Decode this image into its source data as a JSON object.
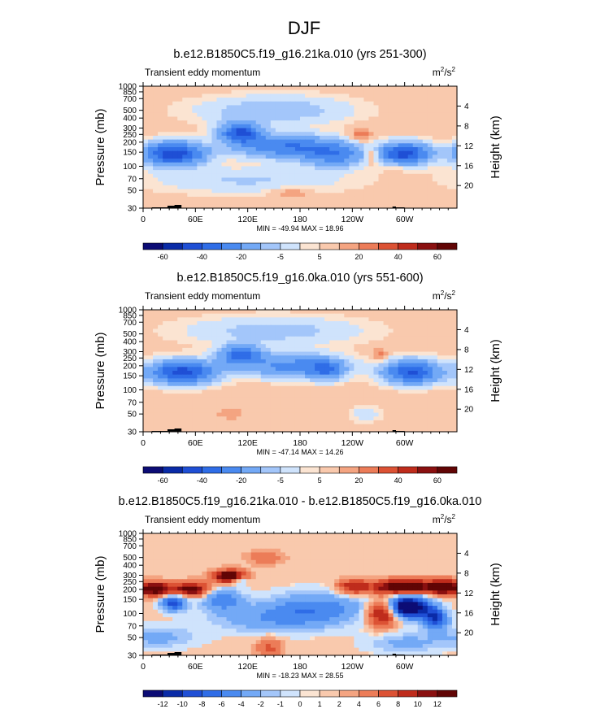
{
  "figure_title": "DJF",
  "chart_data": [
    {
      "type": "heatmap",
      "title": "b.e12.B1850C5.f19_g16.21ka.010 (yrs 251-300)",
      "left_string": "Transient eddy momentum",
      "units": "m2/s2",
      "units_base": "m",
      "units_exp1": "2",
      "units_mid": "/s",
      "units_exp2": "2",
      "ylabel": "Pressure (mb)",
      "ylabel_right": "Height (km)",
      "xticks": [
        "0",
        "60E",
        "120E",
        "180",
        "120W",
        "60W"
      ],
      "yticks": [
        "30",
        "50",
        "70",
        "100",
        "150",
        "200",
        "250",
        "300",
        "400",
        "500",
        "700",
        "850",
        "1000"
      ],
      "ytick_values": [
        30,
        50,
        70,
        100,
        150,
        200,
        250,
        300,
        400,
        500,
        700,
        850,
        1000
      ],
      "height_ticks": [
        "4",
        "8",
        "12",
        "16",
        "20"
      ],
      "height_tick_values": [
        4,
        8,
        12,
        16,
        20
      ],
      "stats_text": "MIN = -49.94  MAX = 18.96",
      "min": -49.94,
      "max": 18.96,
      "colorbar_labels": [
        "-60",
        "-40",
        "-20",
        "-5",
        "5",
        "20",
        "40",
        "60"
      ],
      "colorbar_levels": [
        -70,
        -60,
        -50,
        -40,
        -30,
        -20,
        -10,
        -5,
        -1,
        1,
        5,
        10,
        20,
        30,
        40,
        50,
        60,
        70
      ],
      "features": [
        {
          "lon": 35,
          "p": 210,
          "dlon": 24,
          "dz": 1.6,
          "amp": -50
        },
        {
          "lon": 112,
          "p": 115,
          "dlon": 16,
          "dz": 1.4,
          "amp": -44
        },
        {
          "lon": 165,
          "p": 170,
          "dlon": 40,
          "dz": 1.6,
          "amp": -32
        },
        {
          "lon": 220,
          "p": 220,
          "dlon": 24,
          "dz": 1.6,
          "amp": -26
        },
        {
          "lon": 300,
          "p": 210,
          "dlon": 20,
          "dz": 1.5,
          "amp": -48
        },
        {
          "lon": 150,
          "p": 60,
          "dlon": 60,
          "dz": 2.0,
          "amp": -12
        },
        {
          "lon": 120,
          "p": 450,
          "dlon": 80,
          "dz": 1.8,
          "amp": -8
        },
        {
          "lon": 262,
          "p": 220,
          "dlon": 6,
          "dz": 1.2,
          "amp": 15
        },
        {
          "lon": 250,
          "p": 120,
          "dlon": 8,
          "dz": 1.0,
          "amp": 12
        },
        {
          "lon": 170,
          "p": 650,
          "dlon": 14,
          "dz": 0.8,
          "amp": 8
        },
        {
          "lon": 290,
          "p": 300,
          "dlon": 10,
          "dz": 0.8,
          "amp": 6
        }
      ],
      "base": 2.5
    },
    {
      "type": "heatmap",
      "title": "b.e12.B1850C5.f19_g16.0ka.010 (yrs 551-600)",
      "left_string": "Transient eddy momentum",
      "units": "m2/s2",
      "units_base": "m",
      "units_exp1": "2",
      "units_mid": "/s",
      "units_exp2": "2",
      "ylabel": "Pressure (mb)",
      "ylabel_right": "Height (km)",
      "xticks": [
        "0",
        "60E",
        "120E",
        "180",
        "120W",
        "60W"
      ],
      "yticks": [
        "30",
        "50",
        "70",
        "100",
        "150",
        "200",
        "250",
        "300",
        "400",
        "500",
        "700",
        "850",
        "1000"
      ],
      "ytick_values": [
        30,
        50,
        70,
        100,
        150,
        200,
        250,
        300,
        400,
        500,
        700,
        850,
        1000
      ],
      "height_ticks": [
        "4",
        "8",
        "12",
        "16",
        "20"
      ],
      "height_tick_values": [
        4,
        8,
        12,
        16,
        20
      ],
      "stats_text": "MIN = -47.14  MAX = 14.26",
      "min": -47.14,
      "max": 14.26,
      "colorbar_labels": [
        "-60",
        "-40",
        "-20",
        "-5",
        "5",
        "20",
        "40",
        "60"
      ],
      "colorbar_levels": [
        -70,
        -60,
        -50,
        -40,
        -30,
        -20,
        -10,
        -5,
        -1,
        1,
        5,
        10,
        20,
        30,
        40,
        50,
        60,
        70
      ],
      "features": [
        {
          "lon": 45,
          "p": 180,
          "dlon": 26,
          "dz": 1.6,
          "amp": -47
        },
        {
          "lon": 112,
          "p": 110,
          "dlon": 16,
          "dz": 1.3,
          "amp": -38
        },
        {
          "lon": 170,
          "p": 150,
          "dlon": 40,
          "dz": 1.6,
          "amp": -26
        },
        {
          "lon": 210,
          "p": 170,
          "dlon": 14,
          "dz": 1.4,
          "amp": -24
        },
        {
          "lon": 308,
          "p": 180,
          "dlon": 22,
          "dz": 1.6,
          "amp": -44
        },
        {
          "lon": 150,
          "p": 55,
          "dlon": 70,
          "dz": 2.0,
          "amp": -10
        },
        {
          "lon": 255,
          "p": 600,
          "dlon": 12,
          "dz": 1.2,
          "amp": -6
        },
        {
          "lon": 272,
          "p": 110,
          "dlon": 6,
          "dz": 0.9,
          "amp": 10
        },
        {
          "lon": 100,
          "p": 600,
          "dlon": 10,
          "dz": 0.8,
          "amp": 6
        }
      ],
      "base": 2.5
    },
    {
      "type": "heatmap",
      "title": "b.e12.B1850C5.f19_g16.21ka.010 - b.e12.B1850C5.f19_g16.0ka.010",
      "left_string": "Transient eddy momentum",
      "units": "m2/s2",
      "units_base": "m",
      "units_exp1": "2",
      "units_mid": "/s",
      "units_exp2": "2",
      "ylabel": "Pressure (mb)",
      "ylabel_right": "Height (km)",
      "xticks": [
        "0",
        "60E",
        "120E",
        "180",
        "120W",
        "60W"
      ],
      "yticks": [
        "30",
        "50",
        "70",
        "100",
        "150",
        "200",
        "250",
        "300",
        "400",
        "500",
        "700",
        "850",
        "1000"
      ],
      "ytick_values": [
        30,
        50,
        70,
        100,
        150,
        200,
        250,
        300,
        400,
        500,
        700,
        850,
        1000
      ],
      "height_ticks": [
        "4",
        "8",
        "12",
        "16",
        "20"
      ],
      "height_tick_values": [
        4,
        8,
        12,
        16,
        20
      ],
      "stats_text": "MIN = -18.23  MAX = 28.55",
      "min": -18.23,
      "max": 28.55,
      "colorbar_labels": [
        "-12",
        "-10",
        "-8",
        "-6",
        "-4",
        "-2",
        "-1",
        "0",
        "1",
        "2",
        "4",
        "6",
        "8",
        "10",
        "12"
      ],
      "colorbar_levels": [
        -14,
        -12,
        -10,
        -8,
        -6,
        -4,
        -2,
        -1,
        -0.01,
        0.01,
        1,
        2,
        4,
        6,
        8,
        10,
        12,
        14
      ],
      "features": [
        {
          "lon": 15,
          "p": 150,
          "dlon": 12,
          "dz": 1.0,
          "amp": 12
        },
        {
          "lon": 55,
          "p": 150,
          "dlon": 14,
          "dz": 1.0,
          "amp": 11
        },
        {
          "lon": 100,
          "p": 105,
          "dlon": 12,
          "dz": 0.9,
          "amp": 16
        },
        {
          "lon": 35,
          "p": 220,
          "dlon": 10,
          "dz": 1.1,
          "amp": -10
        },
        {
          "lon": 90,
          "p": 200,
          "dlon": 16,
          "dz": 1.6,
          "amp": -6
        },
        {
          "lon": 108,
          "p": 115,
          "dlon": 8,
          "dz": 0.7,
          "amp": -8
        },
        {
          "lon": 240,
          "p": 140,
          "dlon": 12,
          "dz": 1.1,
          "amp": 7
        },
        {
          "lon": 275,
          "p": 300,
          "dlon": 12,
          "dz": 1.8,
          "amp": 10
        },
        {
          "lon": 300,
          "p": 140,
          "dlon": 26,
          "dz": 1.0,
          "amp": 14
        },
        {
          "lon": 345,
          "p": 140,
          "dlon": 10,
          "dz": 1.0,
          "amp": 11
        },
        {
          "lon": 305,
          "p": 250,
          "dlon": 16,
          "dz": 1.5,
          "amp": -18
        },
        {
          "lon": 335,
          "p": 350,
          "dlon": 10,
          "dz": 1.5,
          "amp": -10
        },
        {
          "lon": 150,
          "p": 350,
          "dlon": 50,
          "dz": 2.0,
          "amp": -4
        },
        {
          "lon": 200,
          "p": 250,
          "dlon": 40,
          "dz": 2.2,
          "amp": -5
        },
        {
          "lon": 145,
          "p": 800,
          "dlon": 10,
          "dz": 1.5,
          "amp": 4
        },
        {
          "lon": 140,
          "p": 60,
          "dlon": 14,
          "dz": 1.0,
          "amp": 3
        },
        {
          "lon": 20,
          "p": 600,
          "dlon": 30,
          "dz": 1.5,
          "amp": -3
        },
        {
          "lon": 300,
          "p": 700,
          "dlon": 30,
          "dz": 1.5,
          "amp": -3
        }
      ],
      "base": 0.5
    }
  ],
  "colors": {
    "palette": [
      "#0c0c75",
      "#0a2ba7",
      "#1f4fd5",
      "#2f6de7",
      "#4a8af0",
      "#73a9f6",
      "#a3c6fa",
      "#cfe3fc",
      "#fbe4d2",
      "#f9c9ad",
      "#f4a481",
      "#ec7c58",
      "#dc5234",
      "#bf2c1c",
      "#8a1010",
      "#610505"
    ]
  }
}
